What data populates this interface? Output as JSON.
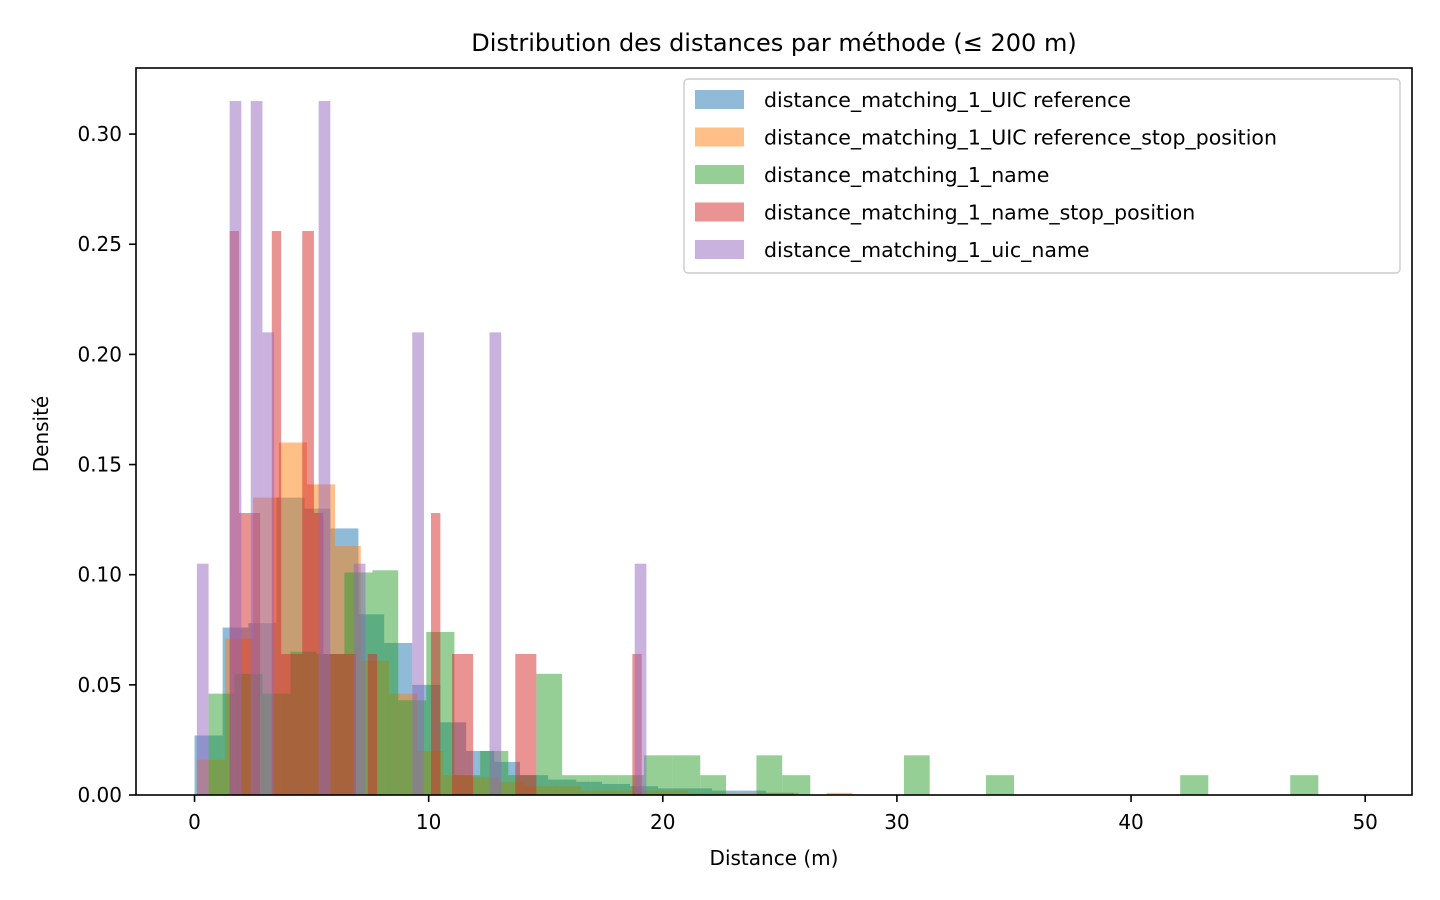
{
  "chart_data": {
    "type": "histogram",
    "title": "Distribution des distances par méthode (≤ 200 m)",
    "xlabel": "Distance (m)",
    "ylabel": "Densité",
    "xlim": [
      -2.5,
      52
    ],
    "ylim": [
      0,
      0.33
    ],
    "x_ticks": [
      0,
      10,
      20,
      30,
      40,
      50
    ],
    "y_ticks": [
      0.0,
      0.05,
      0.1,
      0.15,
      0.2,
      0.25,
      0.3
    ],
    "x_tick_labels": [
      "0",
      "10",
      "20",
      "30",
      "40",
      "50"
    ],
    "y_tick_labels": [
      "0.00",
      "0.05",
      "0.10",
      "0.15",
      "0.20",
      "0.25",
      "0.30"
    ],
    "grid": false,
    "legend_position": "top-right",
    "alpha": 0.5,
    "series": [
      {
        "name": "distance_matching_1_UIC reference",
        "color": "#1f77b4",
        "bins": [
          [
            0.0,
            1.2,
            0.027
          ],
          [
            1.2,
            2.3,
            0.076
          ],
          [
            2.3,
            3.5,
            0.078
          ],
          [
            3.5,
            4.7,
            0.135
          ],
          [
            4.7,
            5.8,
            0.13
          ],
          [
            5.8,
            7.0,
            0.121
          ],
          [
            7.0,
            8.1,
            0.082
          ],
          [
            8.1,
            9.3,
            0.069
          ],
          [
            9.3,
            10.5,
            0.05
          ],
          [
            10.5,
            11.6,
            0.033
          ],
          [
            11.6,
            12.8,
            0.02
          ],
          [
            12.8,
            13.9,
            0.015
          ],
          [
            13.9,
            15.1,
            0.009
          ],
          [
            15.1,
            16.3,
            0.007
          ],
          [
            16.3,
            17.4,
            0.006
          ],
          [
            17.4,
            18.6,
            0.005
          ],
          [
            18.6,
            19.8,
            0.004
          ],
          [
            19.8,
            20.9,
            0.003
          ],
          [
            20.9,
            22.1,
            0.003
          ],
          [
            22.1,
            23.2,
            0.002
          ],
          [
            23.2,
            24.4,
            0.002
          ],
          [
            24.4,
            25.6,
            0.001
          ]
        ]
      },
      {
        "name": "distance_matching_1_UIC reference_stop_position",
        "color": "#ff7f0e",
        "bins": [
          [
            0.1,
            1.3,
            0.016
          ],
          [
            1.3,
            2.5,
            0.071
          ],
          [
            2.5,
            3.6,
            0.135
          ],
          [
            3.6,
            4.8,
            0.16
          ],
          [
            4.8,
            6.0,
            0.141
          ],
          [
            6.0,
            7.1,
            0.113
          ],
          [
            7.1,
            8.3,
            0.061
          ],
          [
            8.3,
            9.5,
            0.046
          ],
          [
            9.5,
            10.6,
            0.02
          ],
          [
            10.6,
            11.8,
            0.009
          ],
          [
            11.8,
            13.0,
            0.008
          ],
          [
            13.0,
            14.1,
            0.006
          ],
          [
            14.1,
            15.3,
            0.004
          ],
          [
            15.3,
            16.5,
            0.004
          ],
          [
            16.5,
            17.6,
            0.002
          ],
          [
            17.6,
            18.8,
            0.002
          ],
          [
            18.8,
            20.0,
            0.002
          ],
          [
            20.0,
            21.1,
            0.002
          ],
          [
            21.1,
            22.3,
            0.001
          ],
          [
            22.3,
            23.5,
            0.001
          ],
          [
            23.5,
            24.6,
            0.001
          ],
          [
            24.6,
            25.8,
            0.001
          ],
          [
            27.0,
            28.1,
            0.001
          ]
        ]
      },
      {
        "name": "distance_matching_1_name",
        "color": "#2ca02c",
        "bins": [
          [
            0.6,
            1.7,
            0.046
          ],
          [
            1.7,
            2.9,
            0.055
          ],
          [
            2.9,
            4.1,
            0.046
          ],
          [
            4.1,
            5.2,
            0.065
          ],
          [
            5.2,
            6.4,
            0.064
          ],
          [
            6.4,
            7.6,
            0.101
          ],
          [
            7.6,
            8.7,
            0.102
          ],
          [
            8.7,
            9.9,
            0.043
          ],
          [
            9.9,
            11.1,
            0.074
          ],
          [
            11.1,
            12.2,
            0.009
          ],
          [
            12.2,
            13.4,
            0.02
          ],
          [
            13.4,
            14.6,
            0.009
          ],
          [
            14.6,
            15.7,
            0.055
          ],
          [
            15.7,
            16.9,
            0.009
          ],
          [
            16.9,
            18.1,
            0.009
          ],
          [
            18.1,
            19.2,
            0.009
          ],
          [
            19.2,
            20.4,
            0.018
          ],
          [
            20.4,
            21.6,
            0.018
          ],
          [
            21.6,
            22.7,
            0.009
          ],
          [
            24.0,
            25.1,
            0.018
          ],
          [
            25.1,
            26.3,
            0.009
          ],
          [
            30.3,
            31.4,
            0.018
          ],
          [
            33.8,
            35.0,
            0.009
          ],
          [
            42.1,
            43.3,
            0.009
          ],
          [
            46.8,
            48.0,
            0.009
          ]
        ]
      },
      {
        "name": "distance_matching_1_name_stop_position",
        "color": "#d62728",
        "bins": [
          [
            1.5,
            1.9,
            0.256
          ],
          [
            1.9,
            2.4,
            0.128
          ],
          [
            2.4,
            2.8,
            0.128
          ],
          [
            2.8,
            3.3,
            0.0
          ],
          [
            3.3,
            3.7,
            0.256
          ],
          [
            3.7,
            4.2,
            0.064
          ],
          [
            4.2,
            4.6,
            0.064
          ],
          [
            4.6,
            5.1,
            0.256
          ],
          [
            5.1,
            5.5,
            0.128
          ],
          [
            5.5,
            6.0,
            0.064
          ],
          [
            6.0,
            6.4,
            0.064
          ],
          [
            6.4,
            6.9,
            0.064
          ],
          [
            7.4,
            7.8,
            0.064
          ],
          [
            10.1,
            10.5,
            0.128
          ],
          [
            11.0,
            11.9,
            0.064
          ],
          [
            13.7,
            14.6,
            0.064
          ],
          [
            18.7,
            19.1,
            0.064
          ]
        ]
      },
      {
        "name": "distance_matching_1_uic_name",
        "color": "#9467bd",
        "bins": [
          [
            0.1,
            0.6,
            0.105
          ],
          [
            1.5,
            2.0,
            0.315
          ],
          [
            2.4,
            2.9,
            0.315
          ],
          [
            2.9,
            3.4,
            0.21
          ],
          [
            5.3,
            5.8,
            0.315
          ],
          [
            6.8,
            7.3,
            0.105
          ],
          [
            9.3,
            9.8,
            0.21
          ],
          [
            12.6,
            13.1,
            0.21
          ],
          [
            18.8,
            19.3,
            0.105
          ]
        ]
      }
    ]
  }
}
